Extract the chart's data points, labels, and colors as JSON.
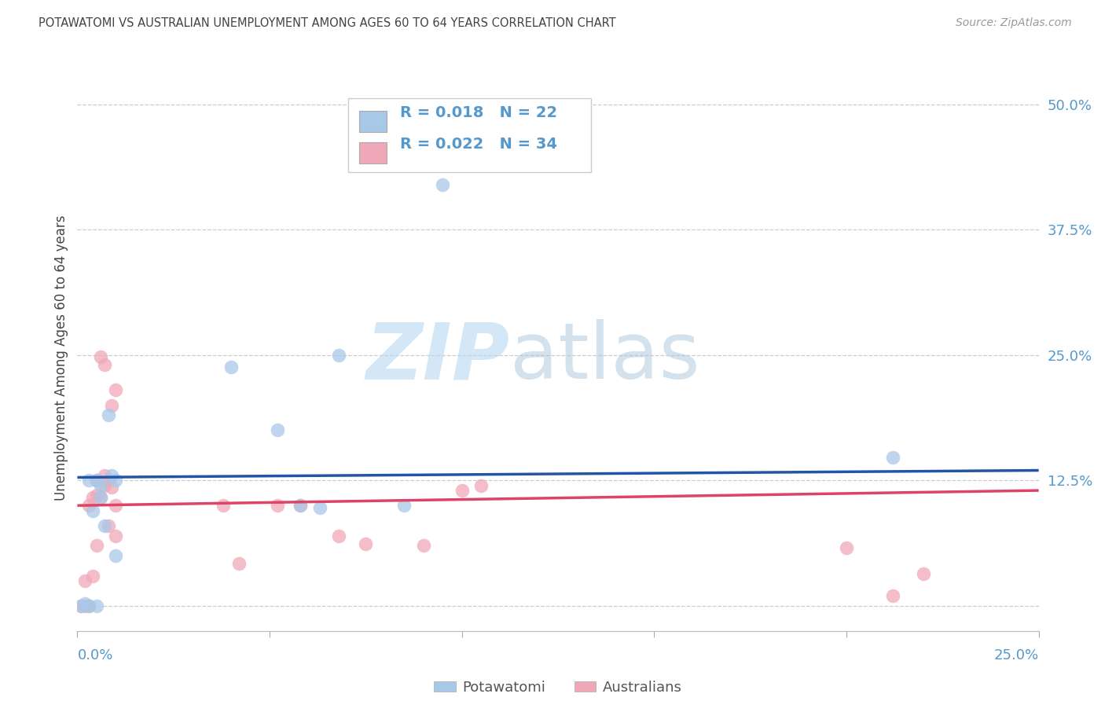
{
  "title": "POTAWATOMI VS AUSTRALIAN UNEMPLOYMENT AMONG AGES 60 TO 64 YEARS CORRELATION CHART",
  "source": "Source: ZipAtlas.com",
  "ylabel_label": "Unemployment Among Ages 60 to 64 years",
  "xmin": 0.0,
  "xmax": 0.25,
  "ymin": -0.025,
  "ymax": 0.52,
  "legend_label1": "Potawatomi",
  "legend_label2": "Australians",
  "blue_color": "#a8c8e8",
  "pink_color": "#f0a8b8",
  "blue_line_color": "#2255aa",
  "pink_line_color": "#dd4466",
  "title_color": "#444444",
  "axis_value_color": "#5599cc",
  "gridline_color": "#cccccc",
  "potawatomi_x": [
    0.001,
    0.002,
    0.003,
    0.003,
    0.004,
    0.005,
    0.005,
    0.006,
    0.006,
    0.007,
    0.008,
    0.009,
    0.01,
    0.01,
    0.04,
    0.052,
    0.058,
    0.063,
    0.068,
    0.085,
    0.095,
    0.212
  ],
  "potawatomi_y": [
    0.0,
    0.002,
    0.0,
    0.125,
    0.095,
    0.0,
    0.125,
    0.108,
    0.12,
    0.08,
    0.19,
    0.13,
    0.05,
    0.125,
    0.238,
    0.175,
    0.1,
    0.098,
    0.25,
    0.1,
    0.42,
    0.148
  ],
  "australian_x": [
    0.001,
    0.002,
    0.002,
    0.003,
    0.003,
    0.004,
    0.004,
    0.005,
    0.005,
    0.005,
    0.006,
    0.006,
    0.007,
    0.007,
    0.007,
    0.008,
    0.008,
    0.009,
    0.009,
    0.01,
    0.01,
    0.01,
    0.038,
    0.042,
    0.052,
    0.058,
    0.068,
    0.075,
    0.09,
    0.1,
    0.105,
    0.2,
    0.212,
    0.22
  ],
  "australian_y": [
    0.0,
    0.0,
    0.025,
    0.0,
    0.1,
    0.03,
    0.108,
    0.125,
    0.11,
    0.06,
    0.108,
    0.248,
    0.12,
    0.13,
    0.24,
    0.08,
    0.125,
    0.118,
    0.2,
    0.07,
    0.1,
    0.215,
    0.1,
    0.042,
    0.1,
    0.1,
    0.07,
    0.062,
    0.06,
    0.115,
    0.12,
    0.058,
    0.01,
    0.032
  ],
  "trend_blue_x0": 0.0,
  "trend_blue_y0": 0.128,
  "trend_blue_x1": 0.25,
  "trend_blue_y1": 0.135,
  "trend_pink_x0": 0.0,
  "trend_pink_y0": 0.1,
  "trend_pink_x1": 0.25,
  "trend_pink_y1": 0.115
}
